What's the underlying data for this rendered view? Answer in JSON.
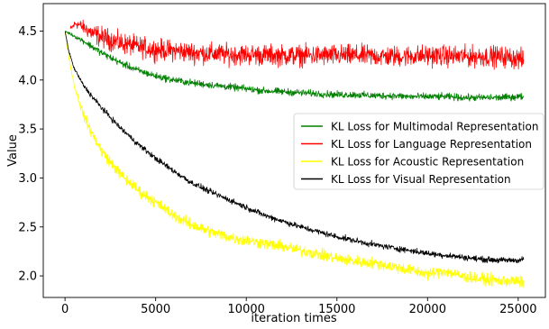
{
  "chart_data": {
    "type": "line",
    "xlabel": "iteration times",
    "ylabel": "Value",
    "xlim": [
      -1200,
      26500
    ],
    "ylim": [
      1.78,
      4.78
    ],
    "xticks": [
      0,
      5000,
      10000,
      15000,
      20000,
      25000
    ],
    "xtick_labels": [
      "0",
      "5000",
      "10000",
      "15000",
      "20000",
      "25000"
    ],
    "yticks": [
      2.0,
      2.5,
      3.0,
      3.5,
      4.0,
      4.5
    ],
    "ytick_labels": [
      "2.0",
      "2.5",
      "3.0",
      "3.5",
      "4.0",
      "4.5"
    ],
    "grid": false,
    "legend_position": "center-right",
    "series": [
      {
        "name": "KL Loss for Multimodal Representation",
        "color": "#008000",
        "noise": 0.03,
        "x": [
          0,
          300,
          600,
          1000,
          1500,
          2000,
          3000,
          4000,
          5000,
          6000,
          7000,
          8000,
          9000,
          10000,
          11000,
          12000,
          13000,
          14000,
          15000,
          16000,
          17000,
          18000,
          19000,
          20000,
          21000,
          22000,
          23000,
          24000,
          25000,
          25300
        ],
        "values": [
          4.5,
          4.47,
          4.44,
          4.4,
          4.34,
          4.28,
          4.18,
          4.1,
          4.04,
          4.0,
          3.97,
          3.95,
          3.93,
          3.91,
          3.89,
          3.88,
          3.87,
          3.86,
          3.85,
          3.85,
          3.84,
          3.84,
          3.83,
          3.83,
          3.83,
          3.82,
          3.82,
          3.82,
          3.83,
          3.83
        ]
      },
      {
        "name": "KL Loss for Language Representation",
        "color": "#ff0000",
        "noise": 0.09,
        "x": [
          300,
          600,
          1000,
          1500,
          2000,
          3000,
          4000,
          5000,
          6000,
          7000,
          8000,
          9000,
          10000,
          12000,
          14000,
          16000,
          18000,
          20000,
          22000,
          24000,
          25000,
          25300
        ],
        "values": [
          4.52,
          4.58,
          4.54,
          4.48,
          4.44,
          4.38,
          4.34,
          4.31,
          4.3,
          4.28,
          4.27,
          4.26,
          4.26,
          4.25,
          4.25,
          4.25,
          4.24,
          4.25,
          4.24,
          4.24,
          4.22,
          4.2
        ]
      },
      {
        "name": "KL Loss for Acoustic Representation",
        "color": "#ffff00",
        "noise": 0.05,
        "x": [
          0,
          200,
          500,
          1000,
          1500,
          2000,
          3000,
          4000,
          5000,
          6000,
          7000,
          8000,
          9000,
          10000,
          11000,
          12000,
          13000,
          14000,
          15000,
          16000,
          17000,
          18000,
          19000,
          20000,
          21000,
          22000,
          23000,
          24000,
          25000,
          25300
        ],
        "values": [
          4.5,
          4.25,
          3.95,
          3.65,
          3.45,
          3.28,
          3.05,
          2.88,
          2.75,
          2.62,
          2.52,
          2.45,
          2.4,
          2.36,
          2.33,
          2.3,
          2.26,
          2.22,
          2.18,
          2.15,
          2.13,
          2.1,
          2.06,
          2.02,
          2.05,
          1.99,
          1.97,
          1.95,
          1.94,
          1.94
        ]
      },
      {
        "name": "KL Loss for Visual Representation",
        "color": "#000000",
        "noise": 0.025,
        "x": [
          0,
          200,
          500,
          1000,
          1500,
          2000,
          3000,
          4000,
          5000,
          6000,
          7000,
          8000,
          9000,
          10000,
          11000,
          12000,
          13000,
          14000,
          15000,
          16000,
          17000,
          18000,
          19000,
          20000,
          21000,
          22000,
          23000,
          24000,
          25000,
          25300
        ],
        "values": [
          4.5,
          4.3,
          4.12,
          3.95,
          3.83,
          3.72,
          3.52,
          3.35,
          3.2,
          3.07,
          2.95,
          2.86,
          2.78,
          2.7,
          2.62,
          2.56,
          2.5,
          2.45,
          2.4,
          2.36,
          2.32,
          2.29,
          2.26,
          2.23,
          2.21,
          2.19,
          2.17,
          2.16,
          2.16,
          2.17
        ]
      }
    ]
  }
}
